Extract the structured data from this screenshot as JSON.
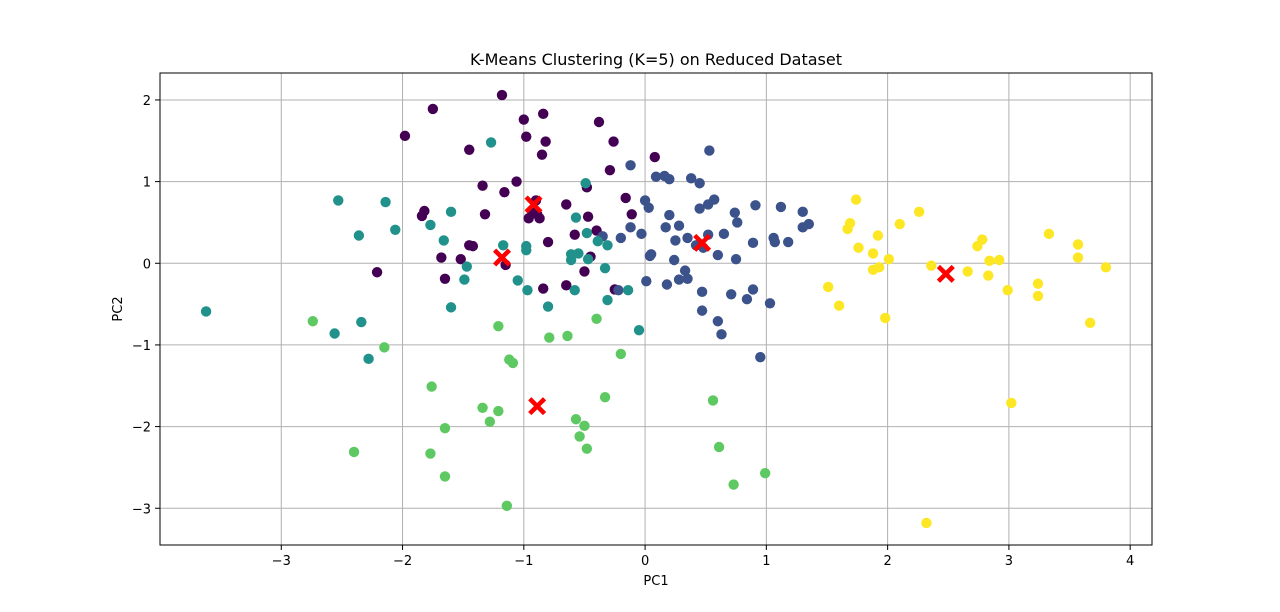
{
  "chart_data": {
    "type": "scatter",
    "title": "K-Means Clustering (K=5) on Reduced Dataset",
    "xlabel": "PC1",
    "ylabel": "PC2",
    "xlim": [
      -4.0,
      4.18
    ],
    "ylim": [
      -3.45,
      2.33
    ],
    "xticks": [
      -3,
      -2,
      -1,
      0,
      1,
      2,
      3,
      4
    ],
    "yticks": [
      -3,
      -2,
      -1,
      0,
      1,
      2
    ],
    "grid": true,
    "cluster_colors": [
      "#440154",
      "#3b528b",
      "#21918c",
      "#5ec962",
      "#fde725"
    ],
    "centroid_color": "#ff0000",
    "series": [
      {
        "cluster": 0,
        "points": [
          [
            -1.18,
            2.06
          ],
          [
            -1.75,
            1.89
          ],
          [
            -1.0,
            1.76
          ],
          [
            -0.84,
            1.83
          ],
          [
            -1.98,
            1.56
          ],
          [
            -0.98,
            1.55
          ],
          [
            -0.82,
            1.49
          ],
          [
            -0.38,
            1.73
          ],
          [
            -0.26,
            1.49
          ],
          [
            -1.45,
            1.39
          ],
          [
            -0.85,
            1.33
          ],
          [
            0.08,
            1.3
          ],
          [
            -0.29,
            1.14
          ],
          [
            -1.16,
            0.87
          ],
          [
            -1.06,
            1.0
          ],
          [
            -1.34,
            0.95
          ],
          [
            -0.48,
            0.93
          ],
          [
            -0.9,
            0.77
          ],
          [
            -0.65,
            0.72
          ],
          [
            -0.16,
            0.8
          ],
          [
            -0.87,
            0.55
          ],
          [
            -1.32,
            0.6
          ],
          [
            -1.82,
            0.64
          ],
          [
            -1.84,
            0.58
          ],
          [
            -0.47,
            0.57
          ],
          [
            -0.11,
            0.6
          ],
          [
            -0.58,
            0.35
          ],
          [
            -0.4,
            0.4
          ],
          [
            -0.93,
            0.62
          ],
          [
            -1.45,
            0.22
          ],
          [
            -1.42,
            0.21
          ],
          [
            -0.8,
            0.26
          ],
          [
            -1.68,
            0.07
          ],
          [
            -1.52,
            0.05
          ],
          [
            -1.15,
            -0.02
          ],
          [
            -0.45,
            0.08
          ],
          [
            -0.5,
            -0.1
          ],
          [
            -2.21,
            -0.11
          ],
          [
            -1.65,
            -0.19
          ],
          [
            -0.65,
            -0.27
          ],
          [
            -0.25,
            -0.32
          ],
          [
            -0.84,
            -0.31
          ],
          [
            -0.89,
            0.6
          ],
          [
            -0.96,
            0.55
          ]
        ]
      },
      {
        "cluster": 1,
        "points": [
          [
            -0.12,
            1.2
          ],
          [
            0.53,
            1.38
          ],
          [
            0.09,
            1.06
          ],
          [
            0.16,
            1.07
          ],
          [
            0.2,
            1.03
          ],
          [
            0.38,
            1.04
          ],
          [
            0.45,
            0.98
          ],
          [
            0.45,
            0.67
          ],
          [
            0.52,
            0.72
          ],
          [
            0.57,
            0.78
          ],
          [
            0.74,
            0.62
          ],
          [
            0.91,
            0.71
          ],
          [
            1.12,
            0.69
          ],
          [
            1.3,
            0.63
          ],
          [
            1.35,
            0.48
          ],
          [
            1.3,
            0.44
          ],
          [
            0.0,
            0.77
          ],
          [
            0.03,
            0.68
          ],
          [
            0.2,
            0.59
          ],
          [
            0.17,
            0.44
          ],
          [
            0.28,
            0.46
          ],
          [
            0.35,
            0.31
          ],
          [
            0.42,
            0.22
          ],
          [
            0.52,
            0.35
          ],
          [
            0.65,
            0.36
          ],
          [
            0.76,
            0.5
          ],
          [
            1.06,
            0.31
          ],
          [
            1.07,
            0.26
          ],
          [
            1.18,
            0.26
          ],
          [
            0.89,
            0.25
          ],
          [
            -0.03,
            0.36
          ],
          [
            -0.12,
            0.44
          ],
          [
            -0.2,
            0.31
          ],
          [
            -0.35,
            0.33
          ],
          [
            0.25,
            0.28
          ],
          [
            0.48,
            0.19
          ],
          [
            0.6,
            0.1
          ],
          [
            0.75,
            0.05
          ],
          [
            0.24,
            0.04
          ],
          [
            0.33,
            -0.09
          ],
          [
            0.35,
            -0.19
          ],
          [
            0.28,
            -0.2
          ],
          [
            0.18,
            -0.26
          ],
          [
            0.04,
            0.09
          ],
          [
            0.05,
            0.11
          ],
          [
            0.01,
            -0.22
          ],
          [
            -0.22,
            -0.33
          ],
          [
            0.47,
            -0.35
          ],
          [
            0.47,
            -0.58
          ],
          [
            0.6,
            -0.71
          ],
          [
            0.63,
            -0.87
          ],
          [
            0.71,
            -0.38
          ],
          [
            0.84,
            -0.44
          ],
          [
            0.89,
            -0.32
          ],
          [
            1.03,
            -0.49
          ],
          [
            0.95,
            -1.15
          ]
        ]
      },
      {
        "cluster": 2,
        "points": [
          [
            -2.53,
            0.77
          ],
          [
            -2.14,
            0.75
          ],
          [
            -2.36,
            0.34
          ],
          [
            -2.06,
            0.41
          ],
          [
            -1.77,
            0.47
          ],
          [
            -1.66,
            0.28
          ],
          [
            -1.6,
            0.63
          ],
          [
            -1.27,
            1.48
          ],
          [
            -0.49,
            0.98
          ],
          [
            -0.57,
            0.56
          ],
          [
            -0.48,
            0.37
          ],
          [
            -0.39,
            0.27
          ],
          [
            -0.31,
            0.22
          ],
          [
            -1.17,
            0.22
          ],
          [
            -0.98,
            0.21
          ],
          [
            -0.98,
            0.16
          ],
          [
            -0.61,
            0.11
          ],
          [
            -0.61,
            0.04
          ],
          [
            -0.55,
            0.12
          ],
          [
            -0.47,
            0.05
          ],
          [
            -0.33,
            -0.06
          ],
          [
            -1.47,
            -0.04
          ],
          [
            -1.49,
            -0.2
          ],
          [
            -1.05,
            -0.21
          ],
          [
            -0.97,
            -0.33
          ],
          [
            -0.58,
            -0.33
          ],
          [
            -0.31,
            -0.45
          ],
          [
            -0.8,
            -0.53
          ],
          [
            -1.6,
            -0.54
          ],
          [
            -0.14,
            -0.33
          ],
          [
            -3.62,
            -0.59
          ],
          [
            -2.56,
            -0.86
          ],
          [
            -2.34,
            -0.72
          ],
          [
            -2.28,
            -1.17
          ],
          [
            -0.05,
            -0.82
          ]
        ]
      },
      {
        "cluster": 3,
        "points": [
          [
            -2.74,
            -0.71
          ],
          [
            -1.21,
            -0.77
          ],
          [
            -0.79,
            -0.91
          ],
          [
            -0.64,
            -0.89
          ],
          [
            -0.4,
            -0.68
          ],
          [
            -2.15,
            -1.03
          ],
          [
            -1.12,
            -1.18
          ],
          [
            -1.09,
            -1.22
          ],
          [
            -0.2,
            -1.11
          ],
          [
            -1.76,
            -1.51
          ],
          [
            -0.33,
            -1.64
          ],
          [
            -1.34,
            -1.77
          ],
          [
            -1.21,
            -1.81
          ],
          [
            -1.28,
            -1.94
          ],
          [
            -0.57,
            -1.91
          ],
          [
            -0.5,
            -1.99
          ],
          [
            -0.54,
            -2.12
          ],
          [
            -0.48,
            -2.27
          ],
          [
            -1.65,
            -2.02
          ],
          [
            -1.77,
            -2.33
          ],
          [
            -2.4,
            -2.31
          ],
          [
            -1.65,
            -2.61
          ],
          [
            -1.14,
            -2.97
          ],
          [
            0.56,
            -1.68
          ],
          [
            0.61,
            -2.25
          ],
          [
            0.73,
            -2.71
          ],
          [
            0.99,
            -2.57
          ]
        ]
      },
      {
        "cluster": 4,
        "points": [
          [
            1.74,
            0.78
          ],
          [
            1.69,
            0.49
          ],
          [
            1.67,
            0.42
          ],
          [
            1.92,
            0.34
          ],
          [
            1.76,
            0.19
          ],
          [
            1.88,
            0.12
          ],
          [
            2.1,
            0.48
          ],
          [
            2.26,
            0.63
          ],
          [
            2.01,
            0.05
          ],
          [
            1.93,
            -0.05
          ],
          [
            1.88,
            -0.08
          ],
          [
            2.36,
            -0.03
          ],
          [
            2.66,
            -0.1
          ],
          [
            2.74,
            0.21
          ],
          [
            2.78,
            0.29
          ],
          [
            2.84,
            0.03
          ],
          [
            2.92,
            0.04
          ],
          [
            2.83,
            -0.15
          ],
          [
            2.99,
            -0.33
          ],
          [
            3.24,
            -0.25
          ],
          [
            3.24,
            -0.4
          ],
          [
            3.33,
            0.36
          ],
          [
            3.57,
            0.23
          ],
          [
            3.57,
            0.07
          ],
          [
            3.8,
            -0.05
          ],
          [
            3.67,
            -0.73
          ],
          [
            1.51,
            -0.29
          ],
          [
            1.6,
            -0.52
          ],
          [
            1.98,
            -0.67
          ],
          [
            3.02,
            -1.71
          ],
          [
            2.32,
            -3.18
          ]
        ]
      }
    ],
    "centroids": [
      [
        -0.92,
        0.72
      ],
      [
        0.47,
        0.25
      ],
      [
        -1.18,
        0.07
      ],
      [
        -0.89,
        -1.75
      ],
      [
        2.48,
        -0.13
      ]
    ]
  }
}
